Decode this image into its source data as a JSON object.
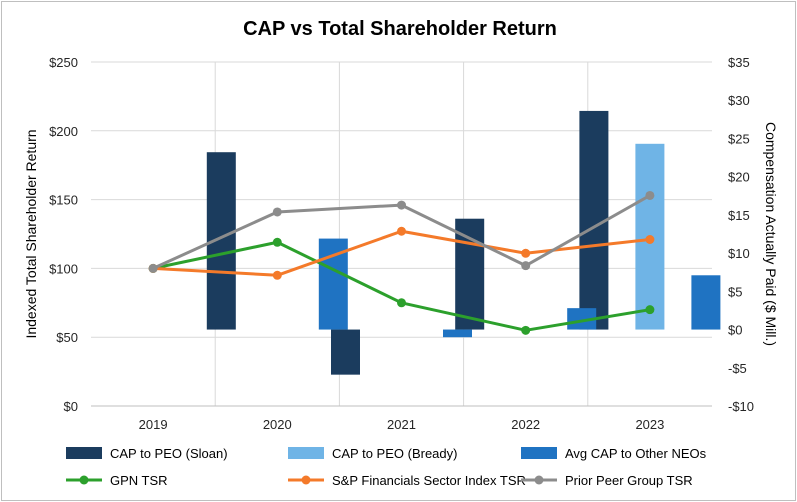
{
  "chart_data": {
    "type": "bar+line",
    "title": "CAP vs Total Shareholder Return",
    "categories": [
      "2019",
      "2020",
      "2021",
      "2022",
      "2023"
    ],
    "y_left": {
      "label": "Indexed Total Shareholder Return",
      "lim": [
        0,
        250
      ],
      "ticks": [
        0,
        50,
        100,
        150,
        200,
        250
      ],
      "tick_labels": [
        "$0",
        "$50",
        "$100",
        "$150",
        "$200",
        "$250"
      ]
    },
    "y_right": {
      "label": "Compensation Actually Paid ($ Mill.)",
      "lim": [
        -10,
        35
      ],
      "ticks": [
        -10,
        -5,
        0,
        5,
        10,
        15,
        20,
        25,
        30,
        35
      ],
      "tick_labels": [
        "-$10",
        "-$5",
        "$0",
        "$5",
        "$10",
        "$15",
        "$20",
        "$25",
        "$30",
        "$35"
      ]
    },
    "bar_series": [
      {
        "name": "CAP to PEO (Sloan)",
        "axis": "right",
        "color": "#1b3c5e",
        "values": [
          null,
          23.2,
          -5.9,
          14.5,
          28.6
        ]
      },
      {
        "name": "CAP to PEO (Bready)",
        "axis": "right",
        "color": "#6fb4e6",
        "values": [
          null,
          null,
          null,
          null,
          24.3
        ]
      },
      {
        "name": "Avg CAP to Other NEOs",
        "axis": "right",
        "color": "#1f73c2",
        "values": [
          null,
          11.9,
          -1.0,
          2.8,
          7.1
        ]
      }
    ],
    "line_series": [
      {
        "name": "GPN TSR",
        "axis": "left",
        "color": "#2ca02c",
        "values": [
          100,
          119,
          75,
          55,
          70
        ]
      },
      {
        "name": "S&P Financials Sector Index TSR",
        "axis": "left",
        "color": "#f47a2a",
        "values": [
          100,
          95,
          127,
          111,
          121
        ]
      },
      {
        "name": "Prior Peer Group TSR",
        "axis": "left",
        "color": "#8c8c8c",
        "values": [
          100,
          141,
          146,
          102,
          153
        ]
      }
    ],
    "legend_position": "bottom"
  }
}
